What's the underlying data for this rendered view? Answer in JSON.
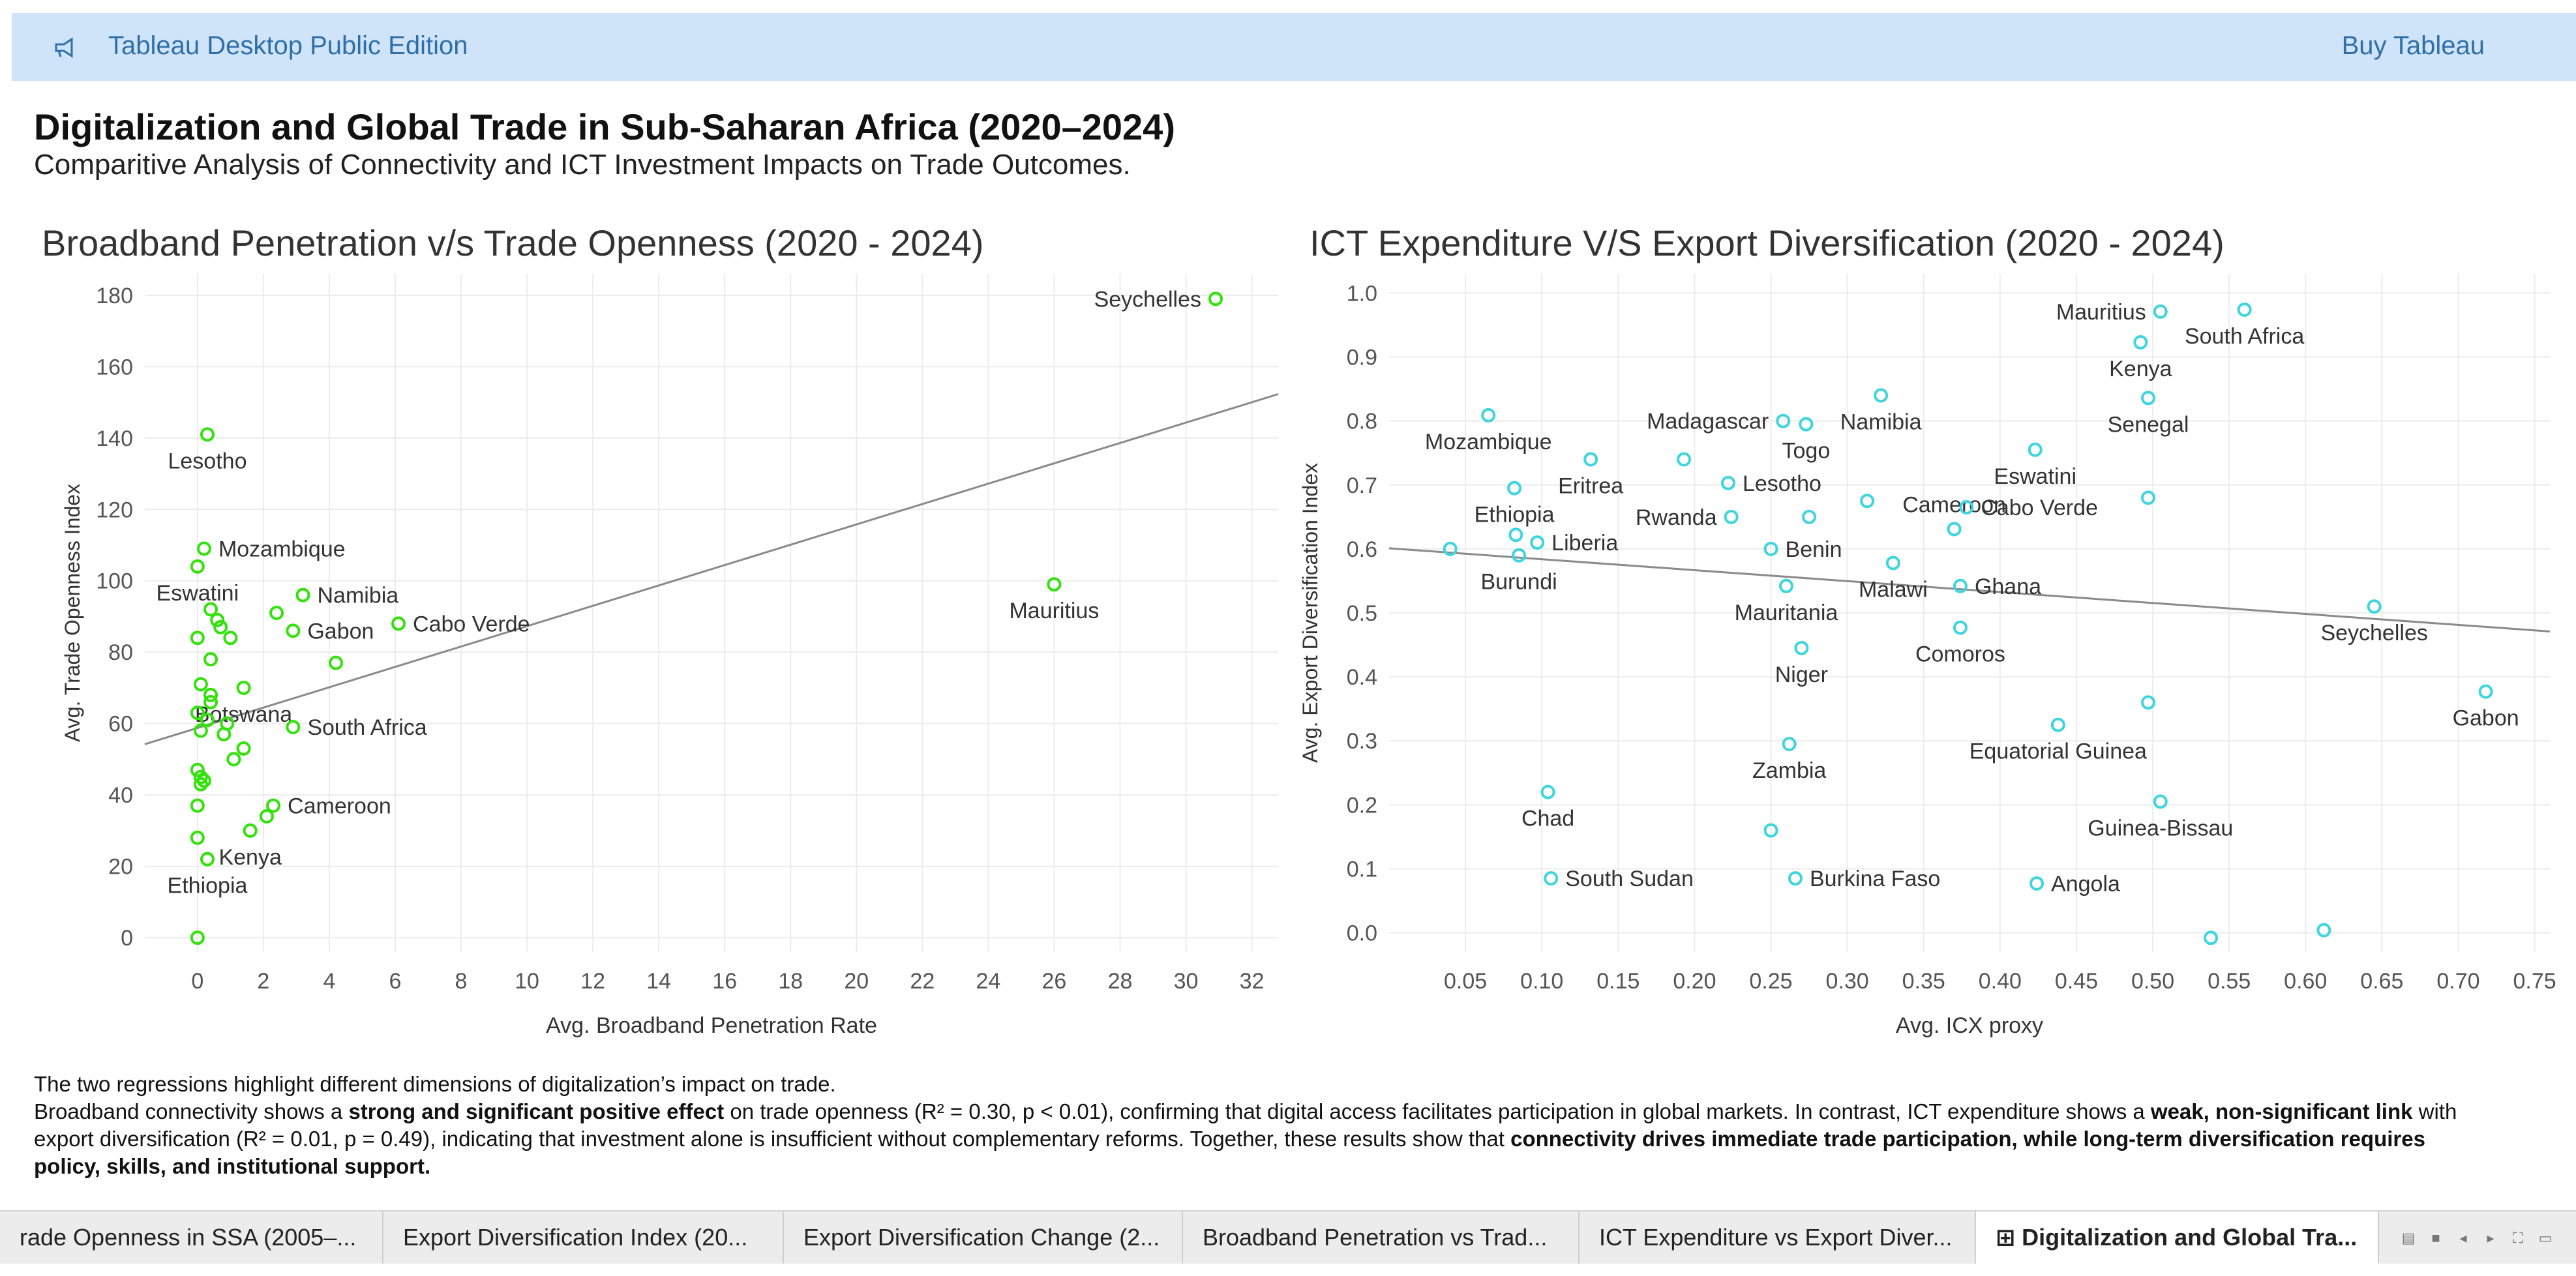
{
  "app": {
    "title": "Tableau Desktop Public Edition",
    "buy_label": "Buy Tableau",
    "accent": "#2f6fa8",
    "bar_color": "#cfe4f8"
  },
  "dashboard": {
    "title": "Digitalization and Global Trade in Sub-Saharan Africa (2020–2024)",
    "subtitle": "Comparitive Analysis of Connectivity and ICT Investment Impacts on Trade Outcomes."
  },
  "chart_data": [
    {
      "type": "scatter",
      "title": "Broadband Penetration v/s Trade Openness (2020 - 2024)",
      "xlabel": "Avg. Broadband Penetration Rate",
      "ylabel": "Avg. Trade Openness Index",
      "xlim": [
        -1.6,
        32.8
      ],
      "ylim": [
        -4,
        186
      ],
      "xticks": [
        0,
        2,
        4,
        6,
        8,
        10,
        12,
        14,
        16,
        18,
        20,
        22,
        24,
        26,
        28,
        30,
        32
      ],
      "yticks": [
        0,
        20,
        40,
        60,
        80,
        100,
        120,
        140,
        160,
        180
      ],
      "color": "#32e20a",
      "trend": {
        "x": [
          -1.6,
          32.8
        ],
        "y": [
          54.2,
          152.3
        ],
        "color": "#8a8a8a"
      },
      "points": [
        {
          "x": 30.9,
          "y": 179,
          "label": "Seychelles",
          "label_pos": "left"
        },
        {
          "x": 26.0,
          "y": 99,
          "label": "Mauritius",
          "label_pos": "below"
        },
        {
          "x": 0.3,
          "y": 141,
          "label": "Lesotho",
          "label_pos": "below"
        },
        {
          "x": 0.2,
          "y": 109,
          "label": "Mozambique",
          "label_pos": "right"
        },
        {
          "x": 0.0,
          "y": 104,
          "label": "Eswatini",
          "label_pos": "below"
        },
        {
          "x": 3.2,
          "y": 96,
          "label": "Namibia",
          "label_pos": "right"
        },
        {
          "x": 2.9,
          "y": 86,
          "label": "Gabon",
          "label_pos": "right"
        },
        {
          "x": 6.1,
          "y": 88,
          "label": "Cabo Verde",
          "label_pos": "right"
        },
        {
          "x": 1.4,
          "y": 70,
          "label": "Botswana",
          "label_pos": "below"
        },
        {
          "x": 2.9,
          "y": 59,
          "label": "South Africa",
          "label_pos": "right"
        },
        {
          "x": 2.3,
          "y": 37,
          "label": "Cameroon",
          "label_pos": "right"
        },
        {
          "x": 1.6,
          "y": 30,
          "label": "Kenya",
          "label_pos": "below"
        },
        {
          "x": 0.3,
          "y": 22,
          "label": "Ethiopia",
          "label_pos": "below"
        },
        {
          "x": 0.4,
          "y": 92,
          "label": "",
          "label_pos": ""
        },
        {
          "x": 0.6,
          "y": 89,
          "label": "",
          "label_pos": ""
        },
        {
          "x": 0.7,
          "y": 87,
          "label": "",
          "label_pos": ""
        },
        {
          "x": 0.0,
          "y": 84,
          "label": "",
          "label_pos": ""
        },
        {
          "x": 1.0,
          "y": 84,
          "label": "",
          "label_pos": ""
        },
        {
          "x": 2.4,
          "y": 91,
          "label": "",
          "label_pos": ""
        },
        {
          "x": 0.4,
          "y": 78,
          "label": "",
          "label_pos": ""
        },
        {
          "x": 4.2,
          "y": 77,
          "label": "",
          "label_pos": ""
        },
        {
          "x": 0.1,
          "y": 71,
          "label": "",
          "label_pos": ""
        },
        {
          "x": 0.4,
          "y": 68,
          "label": "",
          "label_pos": ""
        },
        {
          "x": 0.4,
          "y": 66,
          "label": "",
          "label_pos": ""
        },
        {
          "x": 0.0,
          "y": 63,
          "label": "",
          "label_pos": ""
        },
        {
          "x": 0.3,
          "y": 61,
          "label": "",
          "label_pos": ""
        },
        {
          "x": 0.9,
          "y": 60,
          "label": "",
          "label_pos": ""
        },
        {
          "x": 0.1,
          "y": 58,
          "label": "",
          "label_pos": ""
        },
        {
          "x": 0.8,
          "y": 57,
          "label": "",
          "label_pos": ""
        },
        {
          "x": 1.4,
          "y": 53,
          "label": "",
          "label_pos": ""
        },
        {
          "x": 1.1,
          "y": 50,
          "label": "",
          "label_pos": ""
        },
        {
          "x": 0.0,
          "y": 47,
          "label": "",
          "label_pos": ""
        },
        {
          "x": 0.1,
          "y": 45,
          "label": "",
          "label_pos": ""
        },
        {
          "x": 0.2,
          "y": 44,
          "label": "",
          "label_pos": ""
        },
        {
          "x": 0.1,
          "y": 43,
          "label": "",
          "label_pos": ""
        },
        {
          "x": 0.0,
          "y": 37,
          "label": "",
          "label_pos": ""
        },
        {
          "x": 2.1,
          "y": 34,
          "label": "",
          "label_pos": ""
        },
        {
          "x": 0.0,
          "y": 28,
          "label": "",
          "label_pos": ""
        },
        {
          "x": 0.0,
          "y": 0,
          "label": "",
          "label_pos": ""
        }
      ]
    },
    {
      "type": "scatter",
      "title": "ICT Expenditure V/S Export Diversification (2020 - 2024)",
      "xlabel": "Avg. ICX proxy",
      "ylabel": "Avg. Export Diversification Index",
      "xlim": [
        0.0,
        0.76
      ],
      "ylim": [
        -0.03,
        1.03
      ],
      "xticks": [
        0.05,
        0.1,
        0.15,
        0.2,
        0.25,
        0.3,
        0.35,
        0.4,
        0.45,
        0.5,
        0.55,
        0.6,
        0.65,
        0.7,
        0.75
      ],
      "yticks": [
        0.0,
        0.1,
        0.2,
        0.3,
        0.4,
        0.5,
        0.6,
        0.7,
        0.8,
        0.9,
        1.0
      ],
      "color": "#3fd5dd",
      "trend": {
        "x": [
          0.0,
          0.76
        ],
        "y": [
          0.601,
          0.471
        ],
        "color": "#8a8a8a"
      },
      "points": [
        {
          "x": 0.505,
          "y": 0.971,
          "label": "Mauritius",
          "label_pos": "left"
        },
        {
          "x": 0.56,
          "y": 0.974,
          "label": "South Africa",
          "label_pos": "below"
        },
        {
          "x": 0.492,
          "y": 0.923,
          "label": "Kenya",
          "label_pos": "below"
        },
        {
          "x": 0.497,
          "y": 0.836,
          "label": "Senegal",
          "label_pos": "below"
        },
        {
          "x": 0.065,
          "y": 0.809,
          "label": "Mozambique",
          "label_pos": "below"
        },
        {
          "x": 0.258,
          "y": 0.8,
          "label": "Madagascar",
          "label_pos": "left"
        },
        {
          "x": 0.273,
          "y": 0.795,
          "label": "Togo",
          "label_pos": "below"
        },
        {
          "x": 0.322,
          "y": 0.84,
          "label": "Namibia",
          "label_pos": "below"
        },
        {
          "x": 0.423,
          "y": 0.755,
          "label": "Eswatini",
          "label_pos": "below"
        },
        {
          "x": 0.132,
          "y": 0.74,
          "label": "Eritrea",
          "label_pos": "below"
        },
        {
          "x": 0.222,
          "y": 0.703,
          "label": "Lesotho",
          "label_pos": "right"
        },
        {
          "x": 0.082,
          "y": 0.695,
          "label": "Ethiopia",
          "label_pos": "below"
        },
        {
          "x": 0.37,
          "y": 0.631,
          "label": "Cameroon",
          "label_pos": "above"
        },
        {
          "x": 0.378,
          "y": 0.665,
          "label": "Cabo Verde",
          "label_pos": "right"
        },
        {
          "x": 0.224,
          "y": 0.65,
          "label": "Rwanda",
          "label_pos": "left"
        },
        {
          "x": 0.097,
          "y": 0.61,
          "label": "Liberia",
          "label_pos": "right"
        },
        {
          "x": 0.085,
          "y": 0.59,
          "label": "Burundi",
          "label_pos": "below"
        },
        {
          "x": 0.25,
          "y": 0.6,
          "label": "Benin",
          "label_pos": "right"
        },
        {
          "x": 0.33,
          "y": 0.578,
          "label": "Malawi",
          "label_pos": "below"
        },
        {
          "x": 0.374,
          "y": 0.542,
          "label": "Ghana",
          "label_pos": "right"
        },
        {
          "x": 0.26,
          "y": 0.542,
          "label": "Mauritania",
          "label_pos": "below"
        },
        {
          "x": 0.374,
          "y": 0.477,
          "label": "Comoros",
          "label_pos": "below"
        },
        {
          "x": 0.27,
          "y": 0.445,
          "label": "Niger",
          "label_pos": "below"
        },
        {
          "x": 0.645,
          "y": 0.51,
          "label": "Seychelles",
          "label_pos": "below"
        },
        {
          "x": 0.718,
          "y": 0.377,
          "label": "Gabon",
          "label_pos": "below"
        },
        {
          "x": 0.438,
          "y": 0.325,
          "label": "Equatorial Guinea",
          "label_pos": "below"
        },
        {
          "x": 0.262,
          "y": 0.295,
          "label": "Zambia",
          "label_pos": "below"
        },
        {
          "x": 0.104,
          "y": 0.22,
          "label": "Chad",
          "label_pos": "below"
        },
        {
          "x": 0.505,
          "y": 0.205,
          "label": "Guinea-Bissau",
          "label_pos": "below"
        },
        {
          "x": 0.106,
          "y": 0.085,
          "label": "South Sudan",
          "label_pos": "right"
        },
        {
          "x": 0.266,
          "y": 0.085,
          "label": "Burkina Faso",
          "label_pos": "right"
        },
        {
          "x": 0.424,
          "y": 0.077,
          "label": "Angola",
          "label_pos": "right"
        },
        {
          "x": 0.04,
          "y": 0.6,
          "label": "",
          "label_pos": ""
        },
        {
          "x": 0.083,
          "y": 0.622,
          "label": "",
          "label_pos": ""
        },
        {
          "x": 0.193,
          "y": 0.74,
          "label": "",
          "label_pos": ""
        },
        {
          "x": 0.275,
          "y": 0.65,
          "label": "",
          "label_pos": ""
        },
        {
          "x": 0.313,
          "y": 0.675,
          "label": "",
          "label_pos": ""
        },
        {
          "x": 0.497,
          "y": 0.68,
          "label": "",
          "label_pos": ""
        },
        {
          "x": 0.497,
          "y": 0.36,
          "label": "",
          "label_pos": ""
        },
        {
          "x": 0.25,
          "y": 0.16,
          "label": "",
          "label_pos": ""
        },
        {
          "x": 0.538,
          "y": -0.008,
          "label": "",
          "label_pos": ""
        },
        {
          "x": 0.612,
          "y": 0.004,
          "label": "",
          "label_pos": ""
        }
      ]
    }
  ],
  "footer": {
    "line1": "The two regressions highlight different dimensions of digitalization’s impact on trade.",
    "p_a": "Broadband connectivity shows a ",
    "b_a": "strong and significant positive effect",
    "p_b": " on trade openness (R² = 0.30, p < 0.01), confirming that digital access facilitates participation in global markets. In contrast, ICT expenditure shows a ",
    "b_b": "weak, non-significant link",
    "p_c": " with export diversification (R² = 0.01, p = 0.49), indicating that investment alone is insufficient without complementary reforms. Together, these results show that ",
    "b_c": "connectivity drives immediate trade participation, while long-term diversification requires policy, skills, and institutional support."
  },
  "tabs": [
    {
      "label": "rade Openness in SSA (2005–...",
      "active": false
    },
    {
      "label": "Export Diversification Index (20...",
      "active": false
    },
    {
      "label": "Export Diversification Change (2...",
      "active": false
    },
    {
      "label": "Broadband Penetration vs Trad...",
      "active": false
    },
    {
      "label": "ICT Expenditure vs Export Diver...",
      "active": false
    },
    {
      "label": "⊞ Digitalization and Global Tra...",
      "active": true
    }
  ]
}
